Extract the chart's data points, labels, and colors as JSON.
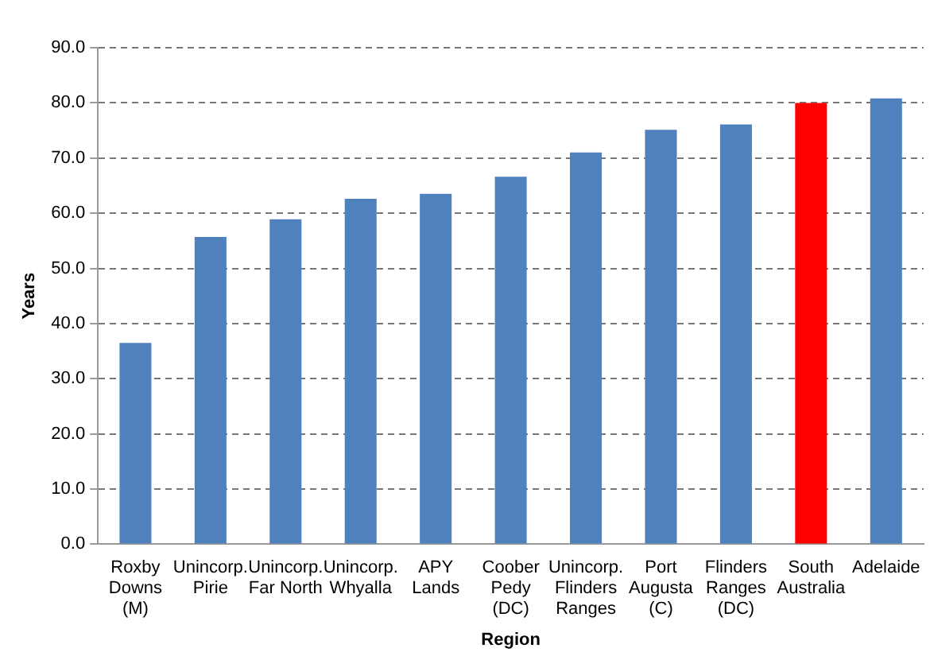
{
  "chart_data": {
    "type": "bar",
    "xlabel": "Region",
    "ylabel": "Years",
    "categories": [
      "Roxby\nDowns\n(M)",
      "Unincorp.\nPirie",
      "Unincorp.\nFar North",
      "Unincorp.\nWhyalla",
      "APY\nLands",
      "Coober\nPedy\n(DC)",
      "Unincorp.\nFlinders\nRanges",
      "Port\nAugusta\n(C)",
      "Flinders\nRanges\n(DC)",
      "South\nAustralia",
      "Adelaide"
    ],
    "values": [
      36.5,
      55.7,
      58.9,
      62.6,
      63.5,
      66.6,
      71.0,
      75.1,
      76.1,
      80.0,
      80.8
    ],
    "colors": [
      "#4f81bd",
      "#4f81bd",
      "#4f81bd",
      "#4f81bd",
      "#4f81bd",
      "#4f81bd",
      "#4f81bd",
      "#4f81bd",
      "#4f81bd",
      "#ff0000",
      "#4f81bd"
    ],
    "ylim": [
      0,
      90
    ],
    "yticks": [
      {
        "value": 0,
        "label": "0.0"
      },
      {
        "value": 10,
        "label": "10.0"
      },
      {
        "value": 20,
        "label": "20.0"
      },
      {
        "value": 30,
        "label": "30.0"
      },
      {
        "value": 40,
        "label": "40.0"
      },
      {
        "value": 50,
        "label": "50.0"
      },
      {
        "value": 60,
        "label": "60.0"
      },
      {
        "value": 70,
        "label": "70.0"
      },
      {
        "value": 80,
        "label": "80.0"
      },
      {
        "value": 90,
        "label": "90.0"
      }
    ],
    "grid": "y"
  }
}
